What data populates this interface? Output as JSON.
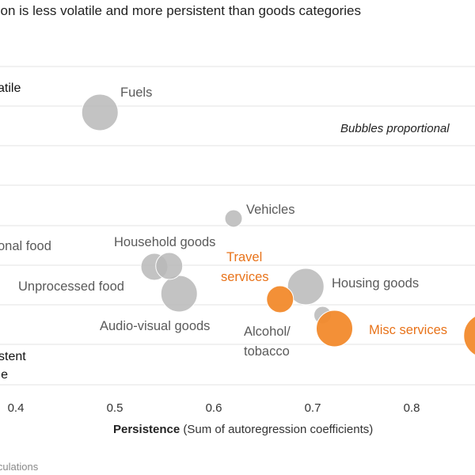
{
  "chart_data": {
    "type": "scatter",
    "title": "tion is less volatile and more persistent than goods categories",
    "xlabel_bold": "Persistence",
    "xlabel_rest": " (Sum of autoregression coefficients)",
    "x_ticks": [
      "0.4",
      "0.5",
      "0.6",
      "0.7",
      "0.8"
    ],
    "x_range": [
      0.4,
      0.8
    ],
    "grid": true,
    "annotation": "Bubbles proportional",
    "corner_labels": {
      "top_left": "atile",
      "bottom_left_1": "stent",
      "bottom_left_2": "ile"
    },
    "colors": {
      "goods": "#b8b8b8",
      "services": "#f28a2c",
      "grid": "#e3e3e3"
    },
    "points": [
      {
        "name": [
          "Fuels"
        ],
        "x": 0.485,
        "size": "large",
        "group": "goods"
      },
      {
        "name": [
          "Vehicles"
        ],
        "x": 0.62,
        "size": "small",
        "group": "goods"
      },
      {
        "name": [
          "onal food"
        ],
        "x": 0.4,
        "size": "none",
        "group": "goods"
      },
      {
        "name": [
          "Household goods"
        ],
        "x": 0.54,
        "size": "medium",
        "group": "goods"
      },
      {
        "name": [
          "Unprocessed food"
        ],
        "x": 0.565,
        "size": "large",
        "group": "goods"
      },
      {
        "name": [
          "Audio-visual goods"
        ],
        "x": 0.555,
        "size": "medium",
        "group": "goods"
      },
      {
        "name": [
          "Housing goods"
        ],
        "x": 0.693,
        "size": "large",
        "group": "goods"
      },
      {
        "name": [
          "Alcohol/",
          "tobacco"
        ],
        "x": 0.71,
        "size": "small",
        "group": "goods"
      },
      {
        "name": [
          "Travel",
          "services"
        ],
        "x": 0.667,
        "size": "medium",
        "group": "services"
      },
      {
        "name": [
          "Misc services"
        ],
        "x": 0.722,
        "size": "large",
        "group": "services"
      },
      {
        "name": [],
        "x": 0.875,
        "size": "xlarge",
        "group": "services"
      }
    ]
  },
  "source": "lculations"
}
